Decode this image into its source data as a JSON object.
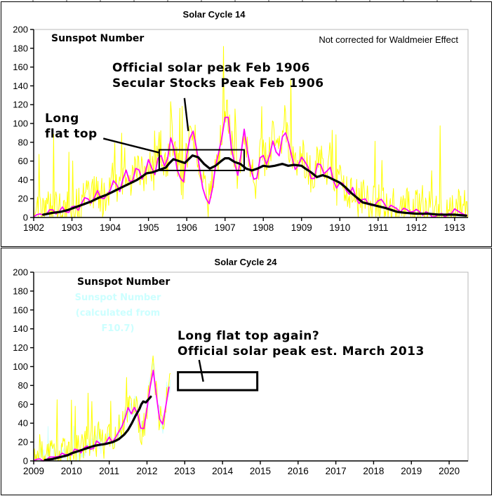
{
  "colors": {
    "daily": "#ffff00",
    "monthly": "#ff00ff",
    "smoothed": "#000000",
    "f107": "#ccffff",
    "cyan_text": "#ccffff",
    "axis": "#000000",
    "plot_border": "#b8b8b8",
    "background": "#ffffff"
  },
  "chart_data": [
    {
      "type": "line",
      "title": "Solar Cycle 14",
      "inner_label": "Sunspot Number",
      "corner_note": "Not corrected for Waldmeier Effect",
      "xlim": [
        1902,
        1913.35
      ],
      "ylim": [
        0,
        200
      ],
      "ytick_step": 20,
      "xticks": [
        1902,
        1903,
        1904,
        1905,
        1906,
        1907,
        1908,
        1909,
        1910,
        1911,
        1912,
        1913
      ],
      "grid": "off",
      "legend": "none",
      "annotations": {
        "peak_line1": "Official solar peak Feb 1906",
        "peak_line2": "Secular Stocks Peak Feb 1906",
        "flat_line1": "Long",
        "flat_line2": "flat top",
        "box": {
          "x0": 1905.28,
          "x1": 1907.5,
          "y0": 50,
          "y1": 72,
          "stroke": 2
        },
        "callout": {
          "x0": 1903.82,
          "y0": 84,
          "x1": 1905.28,
          "y1": 69
        },
        "arrow": {
          "x0": 1905.94,
          "y0": 127,
          "x1": 1906.04,
          "y1": 92
        }
      },
      "series": [
        {
          "name": "daily sunspot number",
          "key": "daily",
          "color": "#ffff00",
          "render": "daily",
          "t0": 1902.0,
          "t1": 1913.35,
          "step": 0.02,
          "amp": 42,
          "spike_p": 0.07,
          "spike": 95,
          "max": 186,
          "seed": 3,
          "base_of": "monthly sunspot number"
        },
        {
          "name": "monthly sunspot number",
          "key": "monthly",
          "color": "#ff00ff",
          "render": "monthly",
          "jitter": 4,
          "seed": 21,
          "points": [
            [
              1902.0,
              1
            ],
            [
              1902.15,
              5
            ],
            [
              1902.3,
              2
            ],
            [
              1902.45,
              8
            ],
            [
              1902.6,
              4
            ],
            [
              1902.75,
              10
            ],
            [
              1902.9,
              5
            ],
            [
              1903.05,
              14
            ],
            [
              1903.2,
              8
            ],
            [
              1903.35,
              24
            ],
            [
              1903.5,
              14
            ],
            [
              1903.65,
              30
            ],
            [
              1903.8,
              18
            ],
            [
              1903.95,
              26
            ],
            [
              1904.1,
              40
            ],
            [
              1904.25,
              26
            ],
            [
              1904.4,
              52
            ],
            [
              1904.55,
              34
            ],
            [
              1904.7,
              58
            ],
            [
              1904.85,
              38
            ],
            [
              1905.0,
              62
            ],
            [
              1905.15,
              42
            ],
            [
              1905.3,
              72
            ],
            [
              1905.45,
              48
            ],
            [
              1905.6,
              88
            ],
            [
              1905.75,
              52
            ],
            [
              1905.9,
              34
            ],
            [
              1906.0,
              68
            ],
            [
              1906.15,
              96
            ],
            [
              1906.3,
              62
            ],
            [
              1906.45,
              24
            ],
            [
              1906.6,
              12
            ],
            [
              1906.75,
              56
            ],
            [
              1906.9,
              82
            ],
            [
              1907.05,
              118
            ],
            [
              1907.2,
              62
            ],
            [
              1907.35,
              44
            ],
            [
              1907.5,
              92
            ],
            [
              1907.65,
              56
            ],
            [
              1907.8,
              36
            ],
            [
              1907.95,
              70
            ],
            [
              1908.1,
              54
            ],
            [
              1908.25,
              82
            ],
            [
              1908.4,
              62
            ],
            [
              1908.55,
              96
            ],
            [
              1908.7,
              74
            ],
            [
              1908.85,
              48
            ],
            [
              1909.0,
              66
            ],
            [
              1909.15,
              54
            ],
            [
              1909.3,
              36
            ],
            [
              1909.45,
              62
            ],
            [
              1909.6,
              46
            ],
            [
              1909.75,
              52
            ],
            [
              1909.9,
              28
            ],
            [
              1910.05,
              42
            ],
            [
              1910.2,
              24
            ],
            [
              1910.35,
              32
            ],
            [
              1910.5,
              14
            ],
            [
              1910.65,
              22
            ],
            [
              1910.8,
              10
            ],
            [
              1910.95,
              16
            ],
            [
              1911.1,
              20
            ],
            [
              1911.25,
              8
            ],
            [
              1911.4,
              14
            ],
            [
              1911.55,
              5
            ],
            [
              1911.7,
              10
            ],
            [
              1911.85,
              4
            ],
            [
              1912.0,
              8
            ],
            [
              1912.15,
              2
            ],
            [
              1912.3,
              6
            ],
            [
              1912.45,
              1
            ],
            [
              1912.6,
              5
            ],
            [
              1912.75,
              2
            ],
            [
              1912.9,
              4
            ],
            [
              1913.05,
              9
            ],
            [
              1913.2,
              3
            ],
            [
              1913.35,
              4
            ]
          ]
        },
        {
          "name": "smoothed sunspot number",
          "key": "smoothed",
          "color": "#000000",
          "render": "smoothed",
          "points": [
            [
              1902.25,
              3
            ],
            [
              1902.5,
              5
            ],
            [
              1902.7,
              6
            ],
            [
              1902.9,
              8
            ],
            [
              1903.1,
              11
            ],
            [
              1903.3,
              14
            ],
            [
              1903.5,
              17
            ],
            [
              1903.7,
              21
            ],
            [
              1903.9,
              24
            ],
            [
              1904.1,
              28
            ],
            [
              1904.3,
              32
            ],
            [
              1904.5,
              36
            ],
            [
              1904.7,
              40
            ],
            [
              1904.85,
              44
            ],
            [
              1904.95,
              47
            ],
            [
              1905.1,
              48
            ],
            [
              1905.3,
              51
            ],
            [
              1905.45,
              53
            ],
            [
              1905.55,
              58
            ],
            [
              1905.65,
              62
            ],
            [
              1905.8,
              60
            ],
            [
              1905.95,
              58
            ],
            [
              1906.05,
              62
            ],
            [
              1906.15,
              66
            ],
            [
              1906.3,
              64
            ],
            [
              1906.45,
              57
            ],
            [
              1906.6,
              52
            ],
            [
              1906.75,
              55
            ],
            [
              1906.9,
              60
            ],
            [
              1907.0,
              63
            ],
            [
              1907.1,
              63
            ],
            [
              1907.25,
              59
            ],
            [
              1907.4,
              57
            ],
            [
              1907.55,
              52
            ],
            [
              1907.7,
              50
            ],
            [
              1907.85,
              52
            ],
            [
              1908.0,
              55
            ],
            [
              1908.15,
              54
            ],
            [
              1908.3,
              55
            ],
            [
              1908.5,
              57
            ],
            [
              1908.65,
              55
            ],
            [
              1908.8,
              56
            ],
            [
              1909.0,
              55
            ],
            [
              1909.1,
              52
            ],
            [
              1909.25,
              48
            ],
            [
              1909.4,
              43
            ],
            [
              1909.55,
              45
            ],
            [
              1909.7,
              43
            ],
            [
              1909.85,
              40
            ],
            [
              1910.0,
              37
            ],
            [
              1910.15,
              32
            ],
            [
              1910.3,
              26
            ],
            [
              1910.45,
              21
            ],
            [
              1910.6,
              16
            ],
            [
              1910.8,
              14
            ],
            [
              1911.0,
              12
            ],
            [
              1911.2,
              10
            ],
            [
              1911.35,
              8
            ],
            [
              1911.5,
              6
            ],
            [
              1911.7,
              5
            ],
            [
              1912.0,
              4
            ],
            [
              1912.3,
              4
            ],
            [
              1912.6,
              3
            ],
            [
              1913.0,
              3
            ],
            [
              1913.3,
              2
            ]
          ]
        }
      ]
    },
    {
      "type": "line",
      "title": "Solar Cycle 24",
      "inner_label": "Sunspot Number",
      "f107_label_line1": "Sunspot Number",
      "f107_label_line2": "(calculated from",
      "f107_label_line3": "F10.7)",
      "xlim": [
        2009,
        2020.5
      ],
      "ylim": [
        0,
        200
      ],
      "ytick_step": 20,
      "xticks": [
        2009,
        2010,
        2011,
        2012,
        2013,
        2014,
        2015,
        2016,
        2017,
        2018,
        2019,
        2020
      ],
      "grid": "off",
      "legend": "none",
      "annotations": {
        "flat_line1": "Long flat top again?",
        "flat_line2": "Official solar peak est. March 2013",
        "box": {
          "x0": 2012.82,
          "x1": 2014.92,
          "y0": 75,
          "y1": 94,
          "stroke": 3
        },
        "callout": {
          "x0": 2013.38,
          "y0": 107,
          "x1": 2013.49,
          "y1": 84
        }
      },
      "series": [
        {
          "name": "daily sunspot number calculated from F10.7",
          "key": "f107",
          "color": "#ccffff",
          "render": "daily",
          "t0": 2009.0,
          "t1": 2012.62,
          "step": 0.02,
          "amp": 24,
          "spike_p": 0.05,
          "spike": 35,
          "max": 130,
          "seed": 5,
          "base_of": "monthly sunspot number"
        },
        {
          "name": "daily sunspot number",
          "key": "daily",
          "color": "#ffff00",
          "render": "daily",
          "t0": 2009.0,
          "t1": 2012.62,
          "step": 0.02,
          "amp": 34,
          "spike_p": 0.07,
          "spike": 60,
          "max": 137,
          "seed": 9,
          "base_of": "monthly sunspot number"
        },
        {
          "name": "monthly sunspot number",
          "key": "monthly",
          "color": "#ff00ff",
          "render": "monthly",
          "jitter": 4,
          "seed": 33,
          "points": [
            [
              2009.0,
              0
            ],
            [
              2009.2,
              2
            ],
            [
              2009.35,
              1
            ],
            [
              2009.5,
              5
            ],
            [
              2009.65,
              3
            ],
            [
              2009.8,
              8
            ],
            [
              2009.95,
              5
            ],
            [
              2010.1,
              12
            ],
            [
              2010.25,
              8
            ],
            [
              2010.4,
              18
            ],
            [
              2010.55,
              12
            ],
            [
              2010.7,
              22
            ],
            [
              2010.85,
              15
            ],
            [
              2011.0,
              25
            ],
            [
              2011.1,
              18
            ],
            [
              2011.25,
              30
            ],
            [
              2011.4,
              42
            ],
            [
              2011.5,
              55
            ],
            [
              2011.6,
              48
            ],
            [
              2011.7,
              62
            ],
            [
              2011.8,
              35
            ],
            [
              2011.9,
              30
            ],
            [
              2012.0,
              55
            ],
            [
              2012.1,
              85
            ],
            [
              2012.17,
              97
            ],
            [
              2012.25,
              70
            ],
            [
              2012.3,
              50
            ],
            [
              2012.4,
              33
            ],
            [
              2012.5,
              60
            ],
            [
              2012.55,
              75
            ],
            [
              2012.6,
              78
            ]
          ]
        },
        {
          "name": "smoothed sunspot number",
          "key": "smoothed",
          "color": "#000000",
          "render": "smoothed",
          "points": [
            [
              2009.3,
              1
            ],
            [
              2009.5,
              2
            ],
            [
              2009.7,
              4
            ],
            [
              2009.9,
              6
            ],
            [
              2010.0,
              8
            ],
            [
              2010.15,
              10
            ],
            [
              2010.3,
              12
            ],
            [
              2010.45,
              14
            ],
            [
              2010.6,
              16
            ],
            [
              2010.75,
              17
            ],
            [
              2010.9,
              18
            ],
            [
              2011.0,
              19
            ],
            [
              2011.1,
              20
            ],
            [
              2011.25,
              23
            ],
            [
              2011.4,
              28
            ],
            [
              2011.5,
              33
            ],
            [
              2011.6,
              40
            ],
            [
              2011.7,
              48
            ],
            [
              2011.8,
              55
            ],
            [
              2011.85,
              60
            ],
            [
              2011.9,
              63
            ],
            [
              2011.97,
              62
            ],
            [
              2012.1,
              68
            ]
          ]
        }
      ]
    }
  ]
}
